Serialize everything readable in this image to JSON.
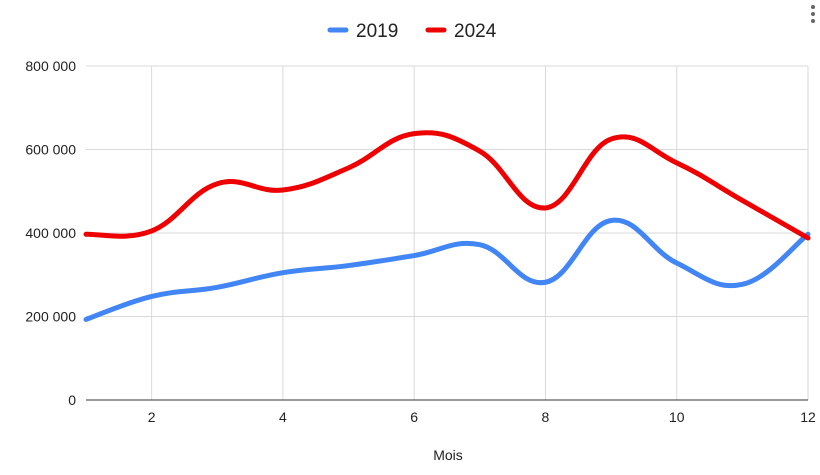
{
  "chart_data": {
    "type": "line",
    "xlabel": "Mois",
    "ylabel": "",
    "x": [
      1,
      2,
      3,
      4,
      5,
      6,
      7,
      8,
      9,
      10,
      11,
      12
    ],
    "xlim": [
      1,
      12
    ],
    "ylim": [
      0,
      800000
    ],
    "x_ticks": [
      2,
      4,
      6,
      8,
      10,
      12
    ],
    "x_tick_labels": [
      "2",
      "4",
      "6",
      "8",
      "10",
      "12"
    ],
    "y_ticks": [
      0,
      200000,
      400000,
      600000,
      800000
    ],
    "y_tick_labels": [
      "0",
      "200 000",
      "400 000",
      "600 000",
      "800 000"
    ],
    "grid": true,
    "legend_position": "top-center",
    "series": [
      {
        "name": "2019",
        "color": "#4285f4",
        "values": [
          193000,
          248000,
          270000,
          305000,
          322000,
          346000,
          372000,
          282000,
          430000,
          328000,
          277000,
          397000
        ]
      },
      {
        "name": "2024",
        "color": "#ee0000",
        "values": [
          397000,
          405000,
          518000,
          503000,
          556000,
          638000,
          596000,
          460000,
          625000,
          568000,
          478000,
          388000
        ]
      }
    ]
  },
  "colors": {
    "grid": "#d9d9d9",
    "axis": "#333333"
  },
  "icons": {
    "menu": "more-vert-icon"
  }
}
